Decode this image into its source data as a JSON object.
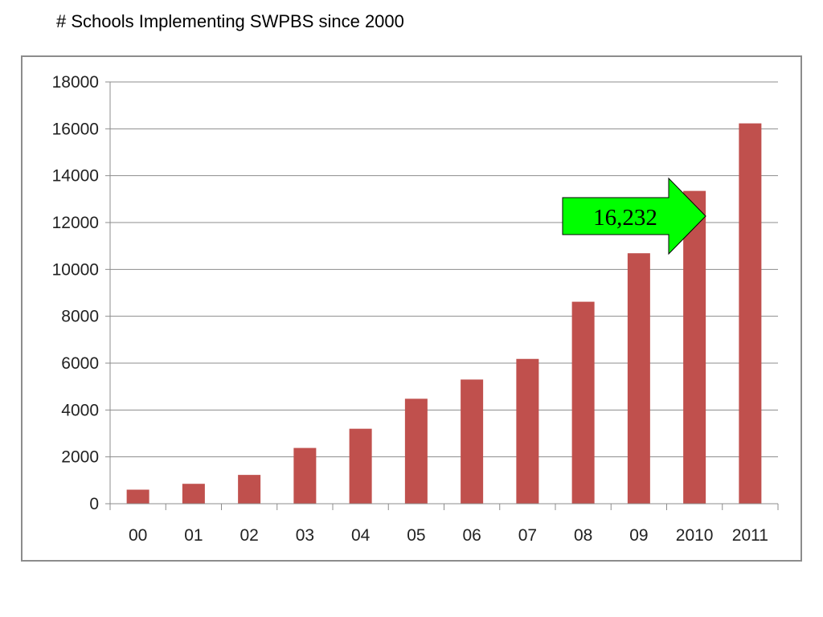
{
  "slide": {
    "title": "# Schools Implementing SWPBS since 2000"
  },
  "chart_data": {
    "type": "bar",
    "title": "",
    "xlabel": "",
    "ylabel": "",
    "categories": [
      "00",
      "01",
      "02",
      "03",
      "04",
      "05",
      "06",
      "07",
      "08",
      "09",
      "2010",
      "2011"
    ],
    "values": [
      600,
      850,
      1230,
      2380,
      3200,
      4480,
      5300,
      6180,
      8620,
      10690,
      13350,
      16232
    ],
    "ylim": [
      0,
      18000
    ],
    "yticks": [
      "0",
      "2000",
      "4000",
      "6000",
      "8000",
      "10000",
      "12000",
      "14000",
      "16000",
      "18000"
    ],
    "grid": true,
    "legend": "none",
    "bar_color": "#c0504d",
    "annotation": {
      "text": "16,232",
      "shape": "right-arrow",
      "fill": "#00ff00",
      "points_to": "2011"
    }
  }
}
